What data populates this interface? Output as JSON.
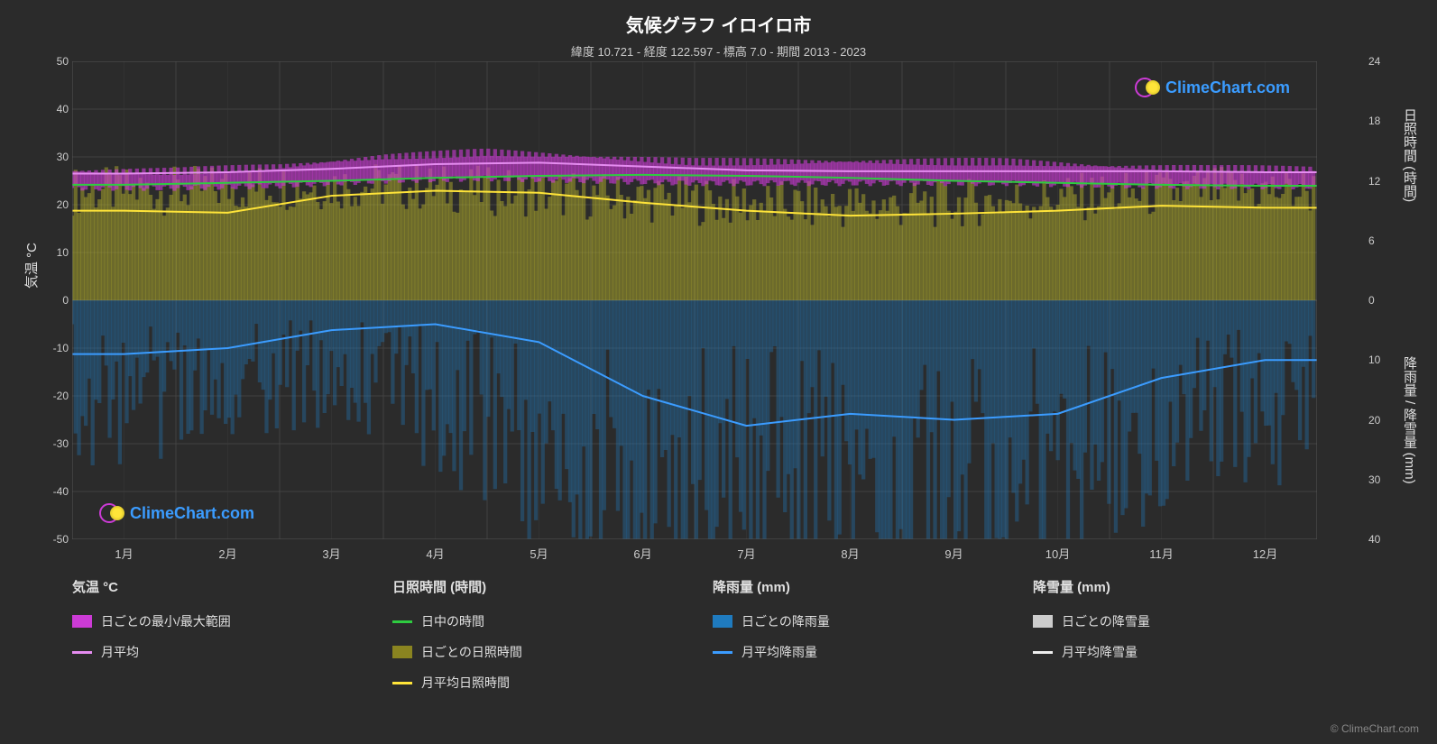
{
  "title": "気候グラフ イロイロ市",
  "subtitle": "緯度 10.721 - 経度 122.597 - 標高 7.0 - 期間 2013 - 2023",
  "watermark_text": "ClimeChart.com",
  "copyright": "© ClimeChart.com",
  "chart": {
    "background_color": "#2b2b2b",
    "grid_color": "#4a4a4a",
    "grid_minor_color": "#3a3a3a",
    "plot_border_color": "#555555",
    "text_color": "#e0e0e0",
    "title_fontsize": 20,
    "subtitle_fontsize": 13,
    "axis_label_fontsize": 15,
    "tick_fontsize": 12,
    "x_tick_labels": [
      "1月",
      "2月",
      "3月",
      "4月",
      "5月",
      "6月",
      "7月",
      "8月",
      "9月",
      "10月",
      "11月",
      "12月"
    ],
    "left_axis": {
      "label": "気温 °C",
      "min": -50,
      "max": 50,
      "ticks": [
        -50,
        -40,
        -30,
        -20,
        -10,
        0,
        10,
        20,
        30,
        40,
        50
      ]
    },
    "right_axis_top": {
      "label": "日照時間 (時間)",
      "min_y_ratio": 0.5,
      "max_y_ratio": 0.0,
      "ticks": [
        0,
        6,
        12,
        18,
        24
      ],
      "tick_ratios": [
        0.5,
        0.375,
        0.25,
        0.125,
        0.0
      ]
    },
    "right_axis_bottom": {
      "label": "降雨量 / 降雪量 (mm)",
      "min_y_ratio": 0.5,
      "max_y_ratio": 1.0,
      "ticks": [
        0,
        10,
        20,
        30,
        40
      ],
      "tick_ratios": [
        0.5,
        0.625,
        0.75,
        0.875,
        1.0
      ]
    },
    "series": {
      "temp_range": {
        "type": "band",
        "color": "#cc3bd6",
        "opacity": 0.6,
        "high": [
          27,
          27,
          28,
          30,
          31,
          30,
          29,
          29,
          29,
          29,
          28,
          27.5
        ],
        "low": [
          23.5,
          23.5,
          24,
          25,
          25.5,
          25,
          24.5,
          24.5,
          24.5,
          24.5,
          24,
          23.8
        ]
      },
      "temp_monthly_avg": {
        "type": "line",
        "color": "#e58cf0",
        "width": 2,
        "values": [
          26.5,
          26.8,
          27.5,
          28.5,
          28.8,
          28,
          27.2,
          27,
          27,
          27,
          27,
          26.8
        ]
      },
      "daylight_hours": {
        "type": "line",
        "color": "#2ecc40",
        "width": 2,
        "values_hours": [
          11.6,
          11.8,
          12.0,
          12.3,
          12.5,
          12.6,
          12.5,
          12.3,
          12.0,
          11.8,
          11.6,
          11.5
        ]
      },
      "sunshine_daily_band": {
        "type": "band_from_zero",
        "color": "#bdb72c",
        "opacity": 0.45,
        "top_hours": [
          11,
          11,
          11.5,
          11.5,
          11,
          10.5,
          10,
          9.5,
          9.5,
          10,
          10.5,
          11
        ]
      },
      "sunshine_monthly_avg": {
        "type": "line",
        "color": "#ffe439",
        "width": 2,
        "values_hours": [
          9,
          8.8,
          10.5,
          11,
          10.8,
          9.8,
          9,
          8.5,
          8.7,
          9,
          9.5,
          9.3
        ]
      },
      "rain_daily_band": {
        "type": "band_from_zero_down",
        "color": "#1f7bbf",
        "opacity": 0.35,
        "bottom_mm": [
          20,
          18,
          15,
          15,
          25,
          35,
          38,
          38,
          38,
          35,
          28,
          22
        ]
      },
      "rain_monthly_avg": {
        "type": "line",
        "color": "#3b9cff",
        "width": 2,
        "values_mm": [
          9,
          8,
          5,
          4,
          7,
          16,
          21,
          19,
          20,
          19,
          13,
          10
        ]
      }
    }
  },
  "legend": {
    "cols": [
      {
        "header": "気温 °C",
        "items": [
          {
            "type": "swatch",
            "color": "#cc3bd6",
            "label": "日ごとの最小/最大範囲"
          },
          {
            "type": "line",
            "color": "#e58cf0",
            "label": "月平均"
          }
        ]
      },
      {
        "header": "日照時間 (時間)",
        "items": [
          {
            "type": "line",
            "color": "#2ecc40",
            "label": "日中の時間"
          },
          {
            "type": "swatch",
            "color": "#8a8420",
            "label": "日ごとの日照時間"
          },
          {
            "type": "line",
            "color": "#ffe439",
            "label": "月平均日照時間"
          }
        ]
      },
      {
        "header": "降雨量 (mm)",
        "items": [
          {
            "type": "swatch",
            "color": "#1f7bbf",
            "label": "日ごとの降雨量"
          },
          {
            "type": "line",
            "color": "#3b9cff",
            "label": "月平均降雨量"
          }
        ]
      },
      {
        "header": "降雪量 (mm)",
        "items": [
          {
            "type": "swatch",
            "color": "#cccccc",
            "label": "日ごとの降雪量"
          },
          {
            "type": "line",
            "color": "#eeeeee",
            "label": "月平均降雪量"
          }
        ]
      }
    ]
  }
}
